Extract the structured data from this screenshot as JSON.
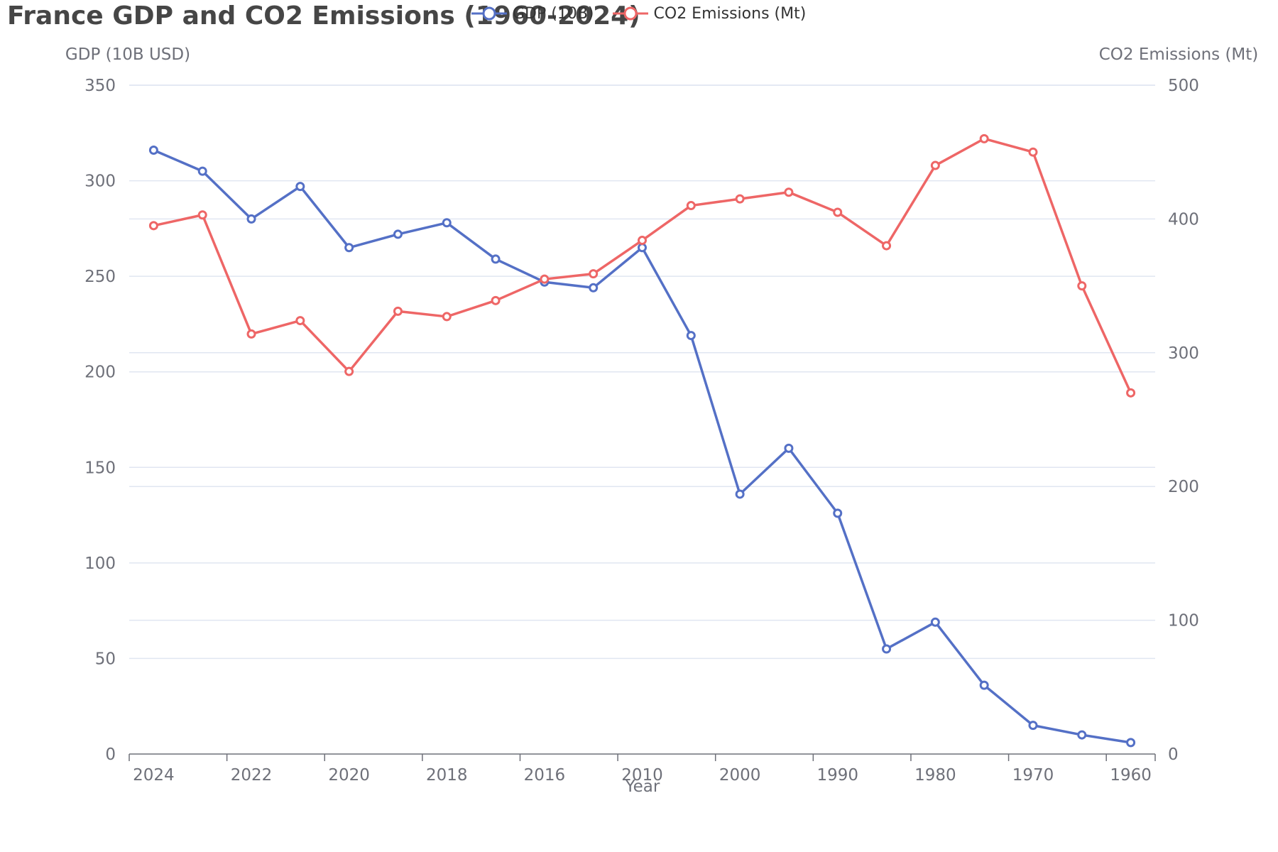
{
  "chart_data": {
    "type": "line",
    "title": "France GDP and CO2 Emissions (1960-2024)",
    "xlabel": "Year",
    "ylabel_left": "GDP (10B USD)",
    "ylabel_right": "CO2 Emissions (Mt)",
    "x_tick_labels": [
      "2024",
      "2022",
      "2020",
      "2018",
      "2016",
      "2010",
      "2000",
      "1990",
      "1980",
      "1970",
      "1960"
    ],
    "left_axis": {
      "min": 0,
      "max": 350,
      "ticks": [
        0,
        50,
        100,
        150,
        200,
        250,
        300,
        350
      ]
    },
    "right_axis": {
      "min": 0,
      "max": 500,
      "ticks": [
        0,
        100,
        200,
        300,
        400,
        500
      ]
    },
    "grid": true,
    "legend_position": "top",
    "x": [
      "2024",
      "2023",
      "2022",
      "2021",
      "2020",
      "2019",
      "2018",
      "2017",
      "2016",
      "2015",
      "2010",
      "2005",
      "2000",
      "1995",
      "1990",
      "1985",
      "1980",
      "1975",
      "1970",
      "1965",
      "1960"
    ],
    "series": [
      {
        "name": "GDP (10B)",
        "axis": "left",
        "color": "#5470c6",
        "values": [
          316,
          305,
          280,
          297,
          265,
          272,
          278,
          259,
          247,
          244,
          265,
          219,
          136,
          160,
          126,
          55,
          69,
          36,
          15,
          10,
          6
        ]
      },
      {
        "name": "CO2 Emissions (Mt)",
        "axis": "right",
        "color": "#ee6666",
        "values": [
          395,
          403,
          314,
          324,
          286,
          331,
          327,
          339,
          355,
          359,
          384,
          410,
          415,
          420,
          405,
          380,
          440,
          460,
          450,
          350,
          270
        ]
      }
    ]
  }
}
